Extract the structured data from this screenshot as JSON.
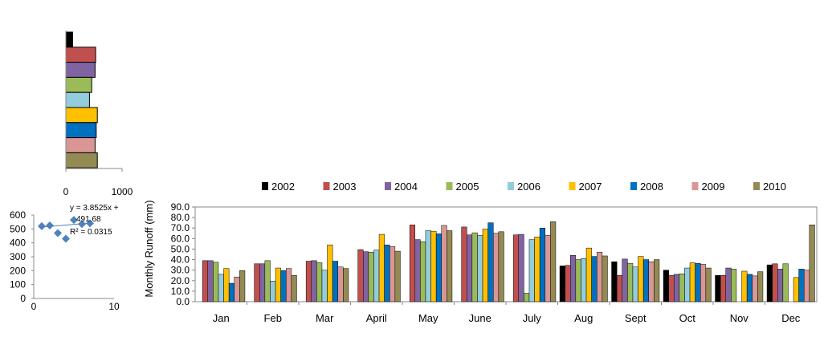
{
  "colors": {
    "2002": "#000000",
    "2003": "#C0504D",
    "2004": "#8064A2",
    "2005": "#9BBB59",
    "2006": "#93CDDD",
    "2007": "#FFC000",
    "2008": "#0070C0",
    "2009": "#D99694",
    "2010": "#948A54",
    "scatter_marker": "#4F81BD"
  },
  "chart_data": [
    {
      "type": "bar",
      "orientation": "horizontal",
      "categories": [
        "2002",
        "2003",
        "2004",
        "2005",
        "2006",
        "2007",
        "2008",
        "2009",
        "2010"
      ],
      "values": [
        120,
        530,
        520,
        460,
        420,
        560,
        540,
        520,
        560
      ],
      "xlim": [
        0,
        1000
      ],
      "xticks": [
        "0",
        "1000"
      ]
    },
    {
      "type": "scatter",
      "x": [
        1,
        2,
        3,
        4,
        5,
        6,
        7
      ],
      "y": [
        520,
        525,
        470,
        430,
        565,
        535,
        540
      ],
      "xlim": [
        0,
        10
      ],
      "ylim": [
        0,
        600
      ],
      "xticks": [
        "0",
        "10"
      ],
      "yticks": [
        "0",
        "100",
        "200",
        "300",
        "400",
        "500",
        "600"
      ],
      "annotations": [
        "y = 3.8525x +",
        "491.68",
        "R² = 0.0315"
      ]
    },
    {
      "type": "bar",
      "categories": [
        "Jan",
        "Feb",
        "Mar",
        "April",
        "May",
        "June",
        "July",
        "Aug",
        "Sept",
        "Oct",
        "Nov",
        "Dec"
      ],
      "ylabel": "Monthly  Runoff (mm)",
      "ylim": [
        0,
        90
      ],
      "yticks": [
        "0.0",
        "10.0",
        "20.0",
        "30.0",
        "40.0",
        "50.0",
        "60.0",
        "70.0",
        "80.0",
        "90.0"
      ],
      "legend_position": "top",
      "series": [
        {
          "name": "2002",
          "values": [
            null,
            null,
            null,
            null,
            null,
            null,
            null,
            34,
            38,
            30,
            25,
            35
          ]
        },
        {
          "name": "2003",
          "values": [
            39,
            36,
            38.5,
            49.5,
            73,
            71,
            63.5,
            34.5,
            25,
            25,
            25,
            36
          ]
        },
        {
          "name": "2004",
          "values": [
            39,
            36,
            39,
            47.5,
            59,
            63.5,
            64,
            44,
            40.5,
            26,
            32,
            31
          ]
        },
        {
          "name": "2005",
          "values": [
            37.5,
            39,
            37,
            47,
            57,
            65.5,
            8,
            40,
            36.5,
            26.5,
            31,
            36
          ]
        },
        {
          "name": "2006",
          "values": [
            26,
            19.5,
            30,
            49,
            67.5,
            63,
            59,
            41,
            33,
            32,
            null,
            null
          ]
        },
        {
          "name": "2007",
          "values": [
            31.5,
            32,
            54,
            64,
            67,
            69,
            61.5,
            51,
            43,
            37,
            29,
            23
          ]
        },
        {
          "name": "2008",
          "values": [
            17.5,
            29.5,
            38.5,
            54,
            64.5,
            75,
            70,
            43,
            40,
            36.5,
            26,
            31
          ]
        },
        {
          "name": "2009",
          "values": [
            23.5,
            31.5,
            33,
            52.5,
            72.5,
            65,
            63,
            47,
            38,
            35.5,
            24.5,
            30
          ]
        },
        {
          "name": "2010",
          "values": [
            29.5,
            25,
            31.5,
            48,
            67.5,
            66.5,
            76,
            43.5,
            40,
            32,
            28.5,
            73
          ]
        }
      ]
    }
  ]
}
